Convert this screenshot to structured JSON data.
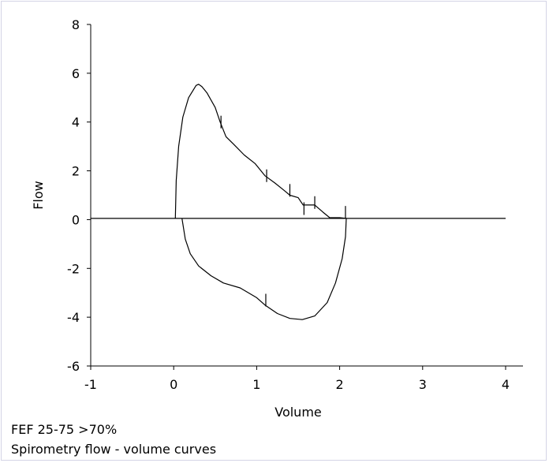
{
  "chart_data": {
    "type": "line",
    "xlabel": "Volume",
    "ylabel": "Flow",
    "xlim": [
      -1,
      4
    ],
    "ylim": [
      -6,
      8
    ],
    "xticks": [
      -1,
      0,
      1,
      2,
      3,
      4
    ],
    "yticks": [
      -6,
      -4,
      -2,
      0,
      2,
      4,
      6,
      8
    ],
    "grid": false,
    "legend": "none",
    "line_color": "#000000",
    "series": [
      {
        "points": [
          [
            0.02,
            0.05
          ],
          [
            0.03,
            1.6
          ],
          [
            0.06,
            3.0
          ],
          [
            0.11,
            4.2
          ],
          [
            0.18,
            5.0
          ],
          [
            0.27,
            5.5
          ],
          [
            0.3,
            5.55
          ],
          [
            0.34,
            5.45
          ],
          [
            0.4,
            5.2
          ],
          [
            0.5,
            4.6
          ],
          [
            0.56,
            4.0
          ],
          [
            0.63,
            3.4
          ],
          [
            0.72,
            3.1
          ],
          [
            0.85,
            2.65
          ],
          [
            0.98,
            2.3
          ],
          [
            1.1,
            1.8
          ],
          [
            1.22,
            1.5
          ],
          [
            1.33,
            1.2
          ],
          [
            1.4,
            1.0
          ],
          [
            1.5,
            0.9
          ],
          [
            1.56,
            0.6
          ],
          [
            1.62,
            0.6
          ],
          [
            1.7,
            0.6
          ],
          [
            1.8,
            0.3
          ],
          [
            1.88,
            0.08
          ],
          [
            2.0,
            0.08
          ],
          [
            2.08,
            0.05
          ]
        ]
      },
      {
        "points": [
          [
            0.1,
            0.05
          ],
          [
            0.14,
            -0.8
          ],
          [
            0.2,
            -1.4
          ],
          [
            0.3,
            -1.9
          ],
          [
            0.45,
            -2.3
          ],
          [
            0.6,
            -2.6
          ],
          [
            0.8,
            -2.8
          ],
          [
            1.0,
            -3.2
          ],
          [
            1.1,
            -3.5
          ],
          [
            1.25,
            -3.85
          ],
          [
            1.4,
            -4.05
          ],
          [
            1.55,
            -4.1
          ],
          [
            1.7,
            -3.95
          ],
          [
            1.85,
            -3.4
          ],
          [
            1.95,
            -2.6
          ],
          [
            2.03,
            -1.6
          ],
          [
            2.07,
            -0.7
          ],
          [
            2.08,
            0.05
          ]
        ]
      },
      {
        "points": [
          [
            -1,
            0.05
          ],
          [
            4,
            0.05
          ]
        ]
      }
    ],
    "markers": [
      {
        "x": 0.57,
        "y": 4.0
      },
      {
        "x": 1.12,
        "y": 1.8
      },
      {
        "x": 1.4,
        "y": 1.2
      },
      {
        "x": 1.57,
        "y": 0.45
      },
      {
        "x": 1.7,
        "y": 0.7
      },
      {
        "x": 2.07,
        "y": 0.3
      },
      {
        "x": 1.11,
        "y": -3.3
      }
    ]
  },
  "captions": {
    "line1": "FEF 25-75 >70%",
    "line2": "Spirometry flow - volume curves"
  }
}
